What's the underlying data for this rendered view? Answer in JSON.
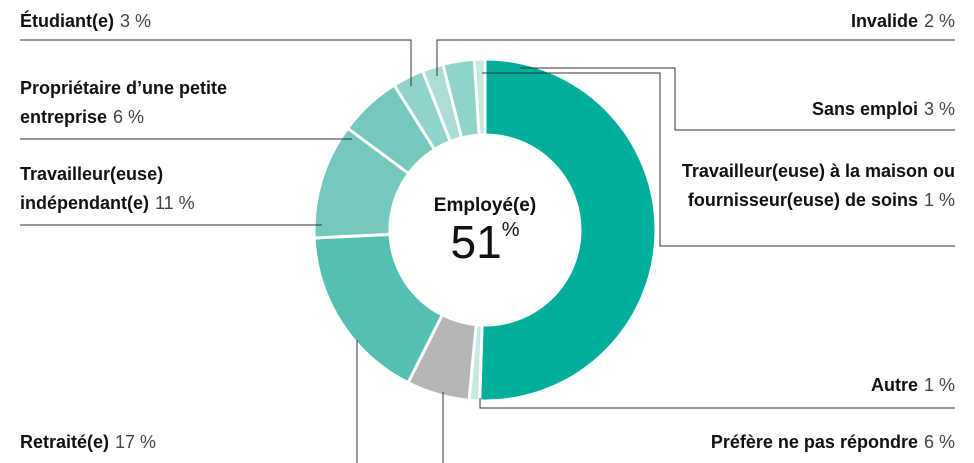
{
  "chart_data": {
    "type": "donut",
    "categories": [
      "Employé(e)",
      "Autre",
      "Préfère ne pas répondre",
      "Retraité(e)",
      "Travailleur(euse) indépendant(e)",
      "Propriétaire d’une petite entreprise",
      "Étudiant(e)",
      "Invalide",
      "Sans emploi",
      "Travailleur(euse) à la maison ou fournisseur(euse) de soins"
    ],
    "values": [
      51,
      1,
      6,
      17,
      11,
      6,
      3,
      2,
      3,
      1
    ],
    "value_labels": [
      "51 %",
      "1 %",
      "6 %",
      "17 %",
      "11 %",
      "6 %",
      "3 %",
      "2 %",
      "3 %",
      "1 %"
    ],
    "unit": "%",
    "colors": [
      "#00ae9b",
      "#c5e8e3",
      "#b5b5b5",
      "#55bfb3",
      "#74c8be",
      "#74c8be",
      "#8fd3cb",
      "#abded7",
      "#8fd3cb",
      "#c5e8e3"
    ]
  }
}
